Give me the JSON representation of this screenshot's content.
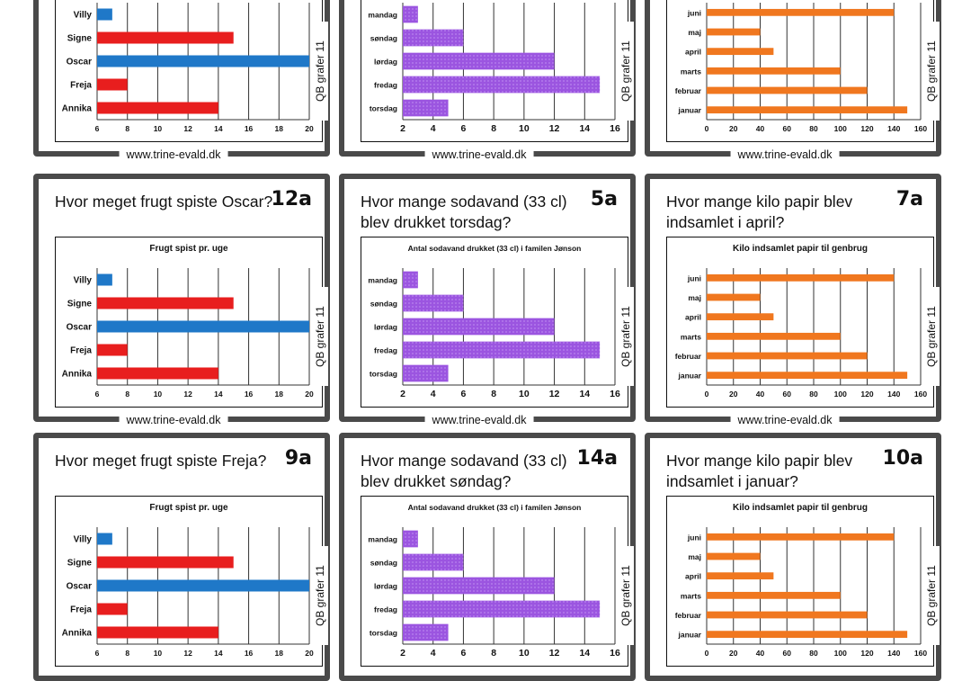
{
  "url": "www.trine-evald.dk",
  "side_label": "QB grafer 11",
  "charts": {
    "frugt": {
      "title": "Frugt spist pr. uge",
      "categories": [
        "Villy",
        "Signe",
        "Oscar",
        "Freja",
        "Annika"
      ],
      "values": [
        7,
        15,
        20,
        8,
        14
      ],
      "bar_colors": [
        "#1f78c8",
        "#e81e1e",
        "#1f78c8",
        "#e81e1e",
        "#e81e1e"
      ],
      "xticks": [
        6,
        8,
        10,
        12,
        14,
        16,
        18,
        20
      ],
      "xlim": [
        6,
        20
      ],
      "grid": true
    },
    "sodavand": {
      "title": "Antal sodavand drukket (33 cl) i familen Jønson",
      "categories": [
        "mandag",
        "søndag",
        "lørdag",
        "fredag",
        "torsdag"
      ],
      "values": [
        3,
        6,
        12,
        15,
        5
      ],
      "bar_color": "#9b55e0",
      "xticks": [
        2,
        4,
        6,
        8,
        10,
        12,
        14,
        16
      ],
      "xlim": [
        2,
        16
      ],
      "grid": true
    },
    "papir": {
      "title": "Kilo indsamlet papir til genbrug",
      "categories": [
        "juni",
        "maj",
        "april",
        "marts",
        "februar",
        "januar"
      ],
      "values": [
        140,
        40,
        50,
        100,
        120,
        150
      ],
      "bar_color": "#f0771f",
      "xticks": [
        0,
        20,
        40,
        60,
        80,
        100,
        120,
        140,
        160
      ],
      "xlim": [
        0,
        160
      ],
      "grid": true
    }
  },
  "chart_data": [
    {
      "type": "bar",
      "title": "Frugt spist pr. uge",
      "categories": [
        "Villy",
        "Signe",
        "Oscar",
        "Freja",
        "Annika"
      ],
      "values": [
        7,
        15,
        20,
        8,
        14
      ],
      "xlim": [
        6,
        20
      ]
    },
    {
      "type": "bar",
      "title": "Antal sodavand drukket (33 cl) i familen Jønson",
      "categories": [
        "mandag",
        "søndag",
        "lørdag",
        "fredag",
        "torsdag"
      ],
      "values": [
        3,
        6,
        12,
        15,
        5
      ],
      "xlim": [
        2,
        16
      ]
    },
    {
      "type": "bar",
      "title": "Kilo indsamlet papir til genbrug",
      "categories": [
        "juni",
        "maj",
        "april",
        "marts",
        "februar",
        "januar"
      ],
      "values": [
        140,
        40,
        50,
        100,
        120,
        150
      ],
      "xlim": [
        0,
        160
      ]
    }
  ],
  "cards": [
    {
      "question": "",
      "code": "",
      "chart": "frugt"
    },
    {
      "question": "",
      "code": "",
      "chart": "sodavand"
    },
    {
      "question": "",
      "code": "",
      "chart": "papir"
    },
    {
      "question": "Hvor meget frugt spiste Oscar?",
      "code": "12a",
      "chart": "frugt"
    },
    {
      "question": "Hvor mange sodavand (33 cl) blev drukket torsdag?",
      "code": "5a",
      "chart": "sodavand"
    },
    {
      "question": "Hvor mange kilo papir blev indsamlet i april?",
      "code": "7a",
      "chart": "papir"
    },
    {
      "question": "Hvor meget frugt spiste Freja?",
      "code": "9a",
      "chart": "frugt"
    },
    {
      "question": "Hvor mange sodavand (33 cl) blev drukket søndag?",
      "code": "14a",
      "chart": "sodavand"
    },
    {
      "question": "Hvor mange kilo papir blev indsamlet i januar?",
      "code": "10a",
      "chart": "papir"
    }
  ]
}
